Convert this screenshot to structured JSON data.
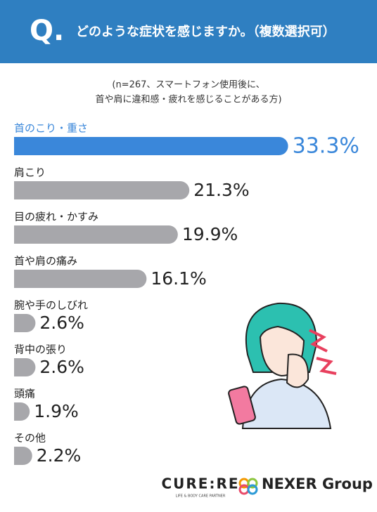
{
  "header": {
    "mark": "Q.",
    "title": "どのような症状を感じますか。（複数選択可）"
  },
  "chart_data": {
    "type": "bar",
    "orientation": "horizontal",
    "subtitle": [
      "(n=267、スマートフォン使用後に、",
      "首や肩に違和感・疲れを感じることがある方)"
    ],
    "categories": [
      "首のこり・重さ",
      "肩こり",
      "目の疲れ・かすみ",
      "首や肩の痛み",
      "腕や手のしびれ",
      "背中の張り",
      "頭痛",
      "その他"
    ],
    "values": [
      33.3,
      21.3,
      19.9,
      16.1,
      2.6,
      2.6,
      1.9,
      2.2
    ],
    "value_labels": [
      "33.3%",
      "21.3%",
      "19.9%",
      "16.1%",
      "2.6%",
      "2.6%",
      "1.9%",
      "2.2%"
    ],
    "colors": [
      "#3a87da",
      "#a7a7ab",
      "#a7a7ab",
      "#a7a7ab",
      "#a7a7ab",
      "#a7a7ab",
      "#a7a7ab",
      "#a7a7ab"
    ],
    "highlight": 0
  },
  "logos": {
    "curere": "CURE:RE",
    "curere_tagline": "LIFE & BODY CARE PARTNER",
    "nexer": "NEXER Group"
  }
}
